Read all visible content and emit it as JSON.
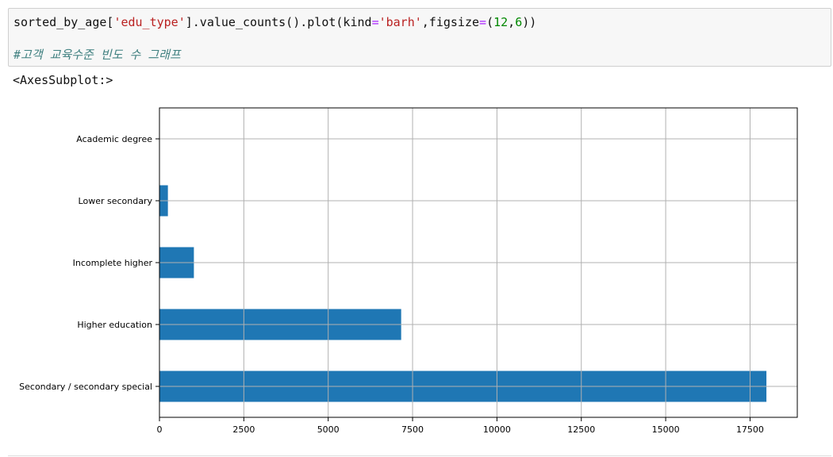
{
  "code": {
    "line1": {
      "t1": "sorted_by_age[",
      "s1": "'edu_type'",
      "t2": "].value_counts().plot(kind",
      "eq1": "=",
      "s2": "'barh'",
      "t3": ",figsize",
      "eq2": "=",
      "t4": "(",
      "n1": "12",
      "t5": ",",
      "n2": "6",
      "t6": "))"
    },
    "comment": "#고객 교육수준 빈도 수 그래프"
  },
  "output_text": "<AxesSubplot:>",
  "colors": {
    "bar": "#1f77b4",
    "grid": "#b0b0b0",
    "axis": "#000000"
  },
  "chart_data": {
    "type": "bar",
    "orientation": "horizontal",
    "categories": [
      "Secondary / secondary special",
      "Higher education",
      "Incomplete higher",
      "Lower secondary",
      "Academic degree"
    ],
    "values": [
      17985,
      7162,
      1020,
      250,
      5
    ],
    "xlim": [
      0,
      18900
    ],
    "xticks": [
      0,
      2500,
      5000,
      7500,
      10000,
      12500,
      15000,
      17500
    ],
    "xtick_labels": [
      "0",
      "2500",
      "5000",
      "7500",
      "10000",
      "12500",
      "15000",
      "17500"
    ],
    "grid": true,
    "title": "",
    "xlabel": "",
    "ylabel": ""
  }
}
